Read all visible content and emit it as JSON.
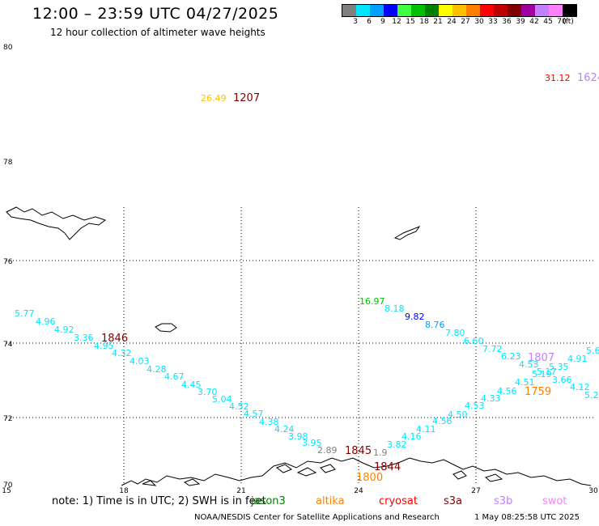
{
  "title": "12:00 – 23:59 UTC 04/27/2025",
  "subtitle": "12 hour collection of altimeter wave heights",
  "legend": {
    "colors": [
      "#808080",
      "#00e5ff",
      "#00a0ff",
      "#0000ff",
      "#40ff40",
      "#00c000",
      "#008000",
      "#ffff00",
      "#ffc000",
      "#ff8000",
      "#ff0000",
      "#c00000",
      "#800000",
      "#a000a0",
      "#c080ff",
      "#ff80ff",
      "#000000"
    ],
    "labels": [
      "3",
      "6",
      "9",
      "12",
      "15",
      "18",
      "21",
      "24",
      "27",
      "30",
      "33",
      "36",
      "39",
      "42",
      "45",
      "70",
      "(ft)"
    ]
  },
  "map": {
    "lat_ticks": [
      "80",
      "78",
      "76",
      "74",
      "72",
      "70"
    ],
    "lon_ticks": [
      "15",
      "18",
      "21",
      "24",
      "27",
      "30"
    ]
  },
  "tracks": [
    {
      "values": [
        {
          "t": "5.77",
          "c": "#00e5ff"
        },
        {
          "t": "4.96",
          "c": "#00e5ff"
        },
        {
          "t": "4.92",
          "c": "#00e5ff"
        },
        {
          "t": "3.36",
          "c": "#00e5ff"
        },
        {
          "t": "4.95",
          "c": "#00e5ff"
        },
        {
          "t": "4.32",
          "c": "#00e5ff"
        },
        {
          "t": "4.03",
          "c": "#00e5ff"
        },
        {
          "t": "4.28",
          "c": "#00e5ff"
        },
        {
          "t": "4.67",
          "c": "#00e5ff"
        },
        {
          "t": "4.45",
          "c": "#00e5ff"
        },
        {
          "t": "3.70",
          "c": "#00e5ff"
        },
        {
          "t": "5.04",
          "c": "#00e5ff"
        },
        {
          "t": "4.52",
          "c": "#00e5ff"
        },
        {
          "t": "4.57",
          "c": "#00e5ff"
        },
        {
          "t": "4.38",
          "c": "#00e5ff"
        },
        {
          "t": "4.24",
          "c": "#00e5ff"
        },
        {
          "t": "3.98",
          "c": "#00e5ff"
        },
        {
          "t": "3.95",
          "c": "#00e5ff"
        },
        {
          "t": "2.89",
          "c": "#808080"
        }
      ]
    },
    {
      "values": [
        {
          "t": "16.97",
          "c": "#00c000"
        },
        {
          "t": "8.18",
          "c": "#00e5ff"
        },
        {
          "t": "9.82",
          "c": "#0000ff"
        },
        {
          "t": "8.76",
          "c": "#00a0ff"
        },
        {
          "t": "7.80",
          "c": "#00e5ff"
        },
        {
          "t": "6.60",
          "c": "#00e5ff"
        },
        {
          "t": "7.72",
          "c": "#00e5ff"
        },
        {
          "t": "6.23",
          "c": "#00e5ff"
        },
        {
          "t": "4.53",
          "c": "#00e5ff"
        },
        {
          "t": "5.35",
          "c": "#00e5ff"
        },
        {
          "t": "4.91",
          "c": "#00e5ff"
        },
        {
          "t": "5.6",
          "c": "#00e5ff"
        },
        {
          "t": "5.19",
          "c": "#00e5ff"
        },
        {
          "t": "5.17",
          "c": "#00e5ff"
        },
        {
          "t": "3.66",
          "c": "#00e5ff"
        },
        {
          "t": "4.12",
          "c": "#00e5ff"
        },
        {
          "t": "5.2",
          "c": "#00e5ff"
        }
      ]
    },
    {
      "values": [
        {
          "t": "1.9",
          "c": "#808080"
        },
        {
          "t": "3.82",
          "c": "#00e5ff"
        },
        {
          "t": "4.16",
          "c": "#00e5ff"
        },
        {
          "t": "4.11",
          "c": "#00e5ff"
        },
        {
          "t": "4.56",
          "c": "#00e5ff"
        },
        {
          "t": "4.50",
          "c": "#00e5ff"
        },
        {
          "t": "4.53",
          "c": "#00e5ff"
        },
        {
          "t": "4.33",
          "c": "#00e5ff"
        },
        {
          "t": "4.56",
          "c": "#00e5ff"
        },
        {
          "t": "4.51",
          "c": "#00e5ff"
        }
      ]
    },
    {
      "values": [
        {
          "t": "26.49",
          "c": "#ffc000"
        },
        {
          "t": "31.12",
          "c": "#ff0000"
        }
      ]
    }
  ],
  "time_labels": [
    {
      "t": "1207",
      "c": "#800000"
    },
    {
      "t": "1624",
      "c": "#c080ff"
    },
    {
      "t": "1846",
      "c": "#800000"
    },
    {
      "t": "1807",
      "c": "#c080ff"
    },
    {
      "t": "1759",
      "c": "#ff8000"
    },
    {
      "t": "1845",
      "c": "#800000"
    },
    {
      "t": "1844",
      "c": "#800000"
    },
    {
      "t": "1800",
      "c": "#ff8000"
    }
  ],
  "footnote": "note:  1) Time is in UTC;  2) SWH is in feet",
  "satellites": [
    {
      "name": "jason3",
      "color": "#008000"
    },
    {
      "name": "altika",
      "color": "#ff8000"
    },
    {
      "name": "cryosat",
      "color": "#ff0000"
    },
    {
      "name": "s3a",
      "color": "#800000"
    },
    {
      "name": "s3b",
      "color": "#c080ff"
    },
    {
      "name": "swot",
      "color": "#ff80ff"
    }
  ],
  "credit": "NOAA/NESDIS Center for Satellite Applications and Research",
  "timestamp": "1 May 08:25:58 UTC 2025"
}
